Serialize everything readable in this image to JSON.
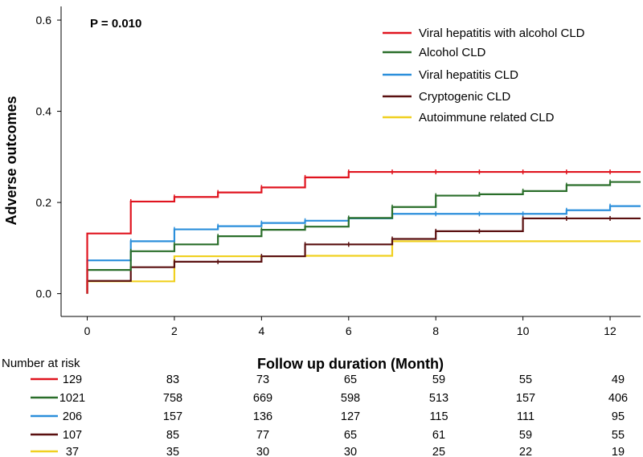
{
  "chart_data": {
    "type": "line",
    "step": true,
    "annotation": "P = 0.010",
    "xlabel": "Follow up duration (Month)",
    "ylabel": "Adverse outcomes",
    "xlim": [
      -0.6,
      12.7
    ],
    "ylim": [
      -0.05,
      0.63
    ],
    "xticks": [
      0,
      2,
      4,
      6,
      8,
      10,
      12
    ],
    "xtick_labels": [
      "0",
      "2",
      "4",
      "6",
      "8",
      "10",
      "12"
    ],
    "yticks": [
      0.0,
      0.2,
      0.4,
      0.6
    ],
    "ytick_labels": [
      "0.0",
      "0.2",
      "0.4",
      "0.6"
    ],
    "legend_position": "top-right",
    "series": [
      {
        "name": "Viral hepatitis with alcohol CLD",
        "color": "#e0141f",
        "x": [
          0,
          0,
          1,
          2,
          3,
          4,
          5,
          6,
          12.7
        ],
        "y": [
          0,
          0.132,
          0.202,
          0.212,
          0.222,
          0.233,
          0.255,
          0.267,
          0.267
        ],
        "censor_x": [
          1,
          2,
          3,
          4,
          5,
          6,
          7,
          8,
          9,
          10,
          11,
          12
        ],
        "risk": [
          "129",
          "83",
          "73",
          "65",
          "59",
          "55",
          "49"
        ]
      },
      {
        "name": "Alcohol CLD",
        "color": "#2a6e2a",
        "x": [
          0,
          0,
          1,
          2,
          3,
          4,
          5,
          6,
          7,
          8,
          9,
          10,
          11,
          12,
          12.7
        ],
        "y": [
          0,
          0.052,
          0.093,
          0.108,
          0.126,
          0.14,
          0.147,
          0.166,
          0.19,
          0.215,
          0.218,
          0.225,
          0.238,
          0.245,
          0.245
        ],
        "censor_x": [
          1,
          2,
          3,
          4,
          5,
          6,
          7,
          8,
          9,
          10,
          11,
          12
        ],
        "risk": [
          "1021",
          "758",
          "669",
          "598",
          "513",
          "157",
          "406"
        ]
      },
      {
        "name": "Viral hepatitis CLD",
        "color": "#2b8fdb",
        "x": [
          0,
          0,
          1,
          2,
          3,
          4,
          5,
          6,
          7,
          11,
          12,
          12.7
        ],
        "y": [
          0,
          0.073,
          0.115,
          0.141,
          0.148,
          0.155,
          0.16,
          0.165,
          0.175,
          0.183,
          0.192,
          0.192
        ],
        "censor_x": [
          1,
          2,
          3,
          4,
          5,
          6,
          7,
          8,
          9,
          10,
          11,
          12
        ],
        "risk": [
          "206",
          "157",
          "136",
          "127",
          "115",
          "111",
          "95"
        ]
      },
      {
        "name": "Cryptogenic CLD",
        "color": "#5a1010",
        "x": [
          0,
          0,
          1,
          2,
          4,
          5,
          7,
          8,
          10,
          12.7
        ],
        "y": [
          0,
          0.028,
          0.058,
          0.07,
          0.082,
          0.108,
          0.12,
          0.137,
          0.165,
          0.165
        ],
        "censor_x": [
          0,
          1,
          2,
          3,
          4,
          5,
          6,
          7,
          8,
          9,
          10,
          11,
          12
        ],
        "risk": [
          "107",
          "85",
          "77",
          "65",
          "61",
          "59",
          "55"
        ]
      },
      {
        "name": "Autoimmune related CLD",
        "color": "#f0d020",
        "x": [
          0,
          0,
          2,
          5,
          7,
          12.7
        ],
        "y": [
          0,
          0.027,
          0.082,
          0.083,
          0.115,
          0.115
        ],
        "censor_x": [],
        "risk": [
          "37",
          "35",
          "30",
          "30",
          "25",
          "22",
          "19"
        ]
      }
    ],
    "risk_table": {
      "title": "Number at risk",
      "time_points": [
        0,
        2,
        4,
        6,
        8,
        10,
        12
      ]
    }
  }
}
